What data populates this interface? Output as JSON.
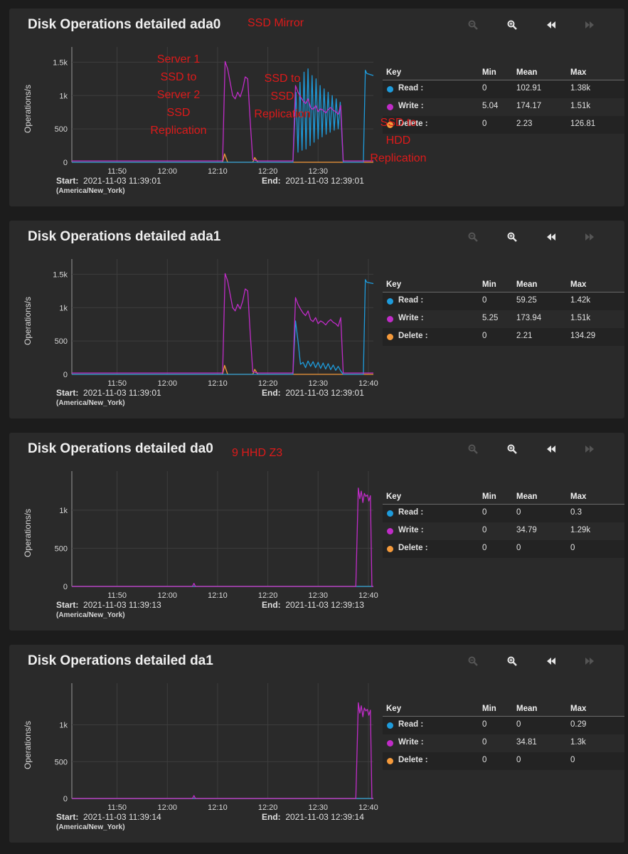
{
  "colors": {
    "read": "#1e9bdb",
    "write": "#c02cc8",
    "delete": "#f59a3b",
    "annotation": "#dd1a1a"
  },
  "icons": [
    "zoom-out-icon",
    "zoom-in-icon",
    "rewind-icon",
    "fast-forward-icon"
  ],
  "legend_headers": {
    "key": "Key",
    "min": "Min",
    "mean": "Mean",
    "max": "Max"
  },
  "footer_labels": {
    "start": "Start:",
    "end": "End:"
  },
  "timezone": "(America/New_York)",
  "annotations": {
    "ssd_mirror": "SSD Mirror",
    "server_replication": [
      "Server 1",
      "SSD to",
      "Server 2",
      "SSD",
      "Replication"
    ],
    "ssd_to_ssd": [
      "SSD to",
      "SSD",
      "Replication"
    ],
    "ssd_to_hdd": [
      "SSD to",
      "HDD",
      "Replication"
    ],
    "hhd_z3": "9 HHD Z3"
  },
  "panels": [
    {
      "title": "Disk Operations detailed ada0",
      "start": "2021-11-03 11:39:01",
      "end": "2021-11-03 12:39:01",
      "legend": [
        {
          "name": "Read :",
          "min": "0",
          "mean": "102.91",
          "max": "1.38k"
        },
        {
          "name": "Write :",
          "min": "5.04",
          "mean": "174.17",
          "max": "1.51k"
        },
        {
          "name": "Delete :",
          "min": "0",
          "mean": "2.23",
          "max": "126.81"
        }
      ]
    },
    {
      "title": "Disk Operations detailed ada1",
      "start": "2021-11-03 11:39:01",
      "end": "2021-11-03 12:39:01",
      "legend": [
        {
          "name": "Read :",
          "min": "0",
          "mean": "59.25",
          "max": "1.42k"
        },
        {
          "name": "Write :",
          "min": "5.25",
          "mean": "173.94",
          "max": "1.51k"
        },
        {
          "name": "Delete :",
          "min": "0",
          "mean": "2.21",
          "max": "134.29"
        }
      ]
    },
    {
      "title": "Disk Operations detailed da0",
      "start": "2021-11-03 11:39:13",
      "end": "2021-11-03 12:39:13",
      "legend": [
        {
          "name": "Read :",
          "min": "0",
          "mean": "0",
          "max": "0.3"
        },
        {
          "name": "Write :",
          "min": "0",
          "mean": "34.79",
          "max": "1.29k"
        },
        {
          "name": "Delete :",
          "min": "0",
          "mean": "0",
          "max": "0"
        }
      ]
    },
    {
      "title": "Disk Operations detailed da1",
      "start": "2021-11-03 11:39:14",
      "end": "2021-11-03 12:39:14",
      "legend": [
        {
          "name": "Read :",
          "min": "0",
          "mean": "0",
          "max": "0.29"
        },
        {
          "name": "Write :",
          "min": "0",
          "mean": "34.81",
          "max": "1.3k"
        },
        {
          "name": "Delete :",
          "min": "0",
          "mean": "0",
          "max": "0"
        }
      ]
    }
  ],
  "chart_data": [
    {
      "type": "line",
      "title": "Disk Operations detailed ada0",
      "ylabel": "Operations/s",
      "xlabel": "",
      "xlim": [
        41.0,
        101.0
      ],
      "ylim": [
        0,
        1600
      ],
      "x_ticks": [
        50,
        60,
        70,
        80,
        90
      ],
      "x_tick_labels": [
        "11:50",
        "12:00",
        "12:10",
        "12:20",
        "12:30"
      ],
      "y_ticks": [
        0,
        500,
        1000,
        1500
      ],
      "y_tick_labels": [
        "0",
        "500",
        "1k",
        "1.5k"
      ],
      "series": [
        {
          "name": "Read",
          "color": "#1e9bdb",
          "x": [
            41,
            85,
            85.6,
            86,
            86.4,
            86.8,
            87.2,
            87.6,
            88,
            88.4,
            88.8,
            89.2,
            89.6,
            90,
            90.4,
            90.8,
            91.2,
            91.6,
            92,
            92.4,
            92.8,
            93.2,
            93.6,
            94,
            94.4,
            95,
            99,
            99.4,
            99.7,
            101.0
          ],
          "values": [
            0,
            0,
            1050,
            150,
            1200,
            180,
            1350,
            200,
            1400,
            250,
            1300,
            300,
            1250,
            350,
            1150,
            380,
            1100,
            420,
            1050,
            450,
            1000,
            480,
            950,
            500,
            900,
            0,
            0,
            1380,
            1330,
            1300
          ]
        },
        {
          "name": "Write",
          "color": "#c02cc8",
          "x": [
            41,
            71,
            71.5,
            72,
            72.5,
            73,
            73.5,
            74,
            74.5,
            75,
            75.5,
            76,
            76.5,
            77,
            77.5,
            78,
            85,
            85.5,
            86,
            86.5,
            87,
            87.5,
            88,
            88.5,
            89,
            89.5,
            90,
            90.5,
            91,
            91.5,
            92,
            92.5,
            93,
            93.5,
            94,
            94.5,
            95,
            101.0
          ],
          "values": [
            20,
            20,
            1510,
            1400,
            1200,
            1000,
            950,
            1050,
            980,
            1100,
            1280,
            1250,
            600,
            40,
            30,
            20,
            20,
            1150,
            1050,
            980,
            920,
            880,
            950,
            820,
            790,
            850,
            760,
            800,
            780,
            740,
            790,
            820,
            780,
            760,
            720,
            850,
            20,
            20
          ]
        },
        {
          "name": "Delete",
          "color": "#f59a3b",
          "x": [
            41,
            71,
            71.4,
            72,
            77,
            77.4,
            78,
            101.0
          ],
          "values": [
            0,
            0,
            126,
            0,
            0,
            70,
            0,
            0
          ]
        }
      ]
    },
    {
      "type": "line",
      "title": "Disk Operations detailed ada1",
      "ylabel": "Operations/s",
      "xlabel": "",
      "xlim": [
        41.0,
        101.0
      ],
      "ylim": [
        0,
        1600
      ],
      "x_ticks": [
        50,
        60,
        70,
        80,
        90,
        100
      ],
      "x_tick_labels": [
        "11:50",
        "12:00",
        "12:10",
        "12:20",
        "12:30",
        "12:40"
      ],
      "y_ticks": [
        0,
        500,
        1000,
        1500
      ],
      "y_tick_labels": [
        "0",
        "500",
        "1k",
        "1.5k"
      ],
      "series": [
        {
          "name": "Read",
          "color": "#1e9bdb",
          "x": [
            41,
            85,
            85.5,
            86,
            86.5,
            87,
            87.5,
            88,
            88.5,
            89,
            89.5,
            90,
            90.5,
            91,
            91.5,
            92,
            92.5,
            93,
            93.5,
            94,
            94.5,
            95,
            99,
            99.4,
            99.7,
            101.0
          ],
          "values": [
            0,
            0,
            800,
            500,
            150,
            180,
            100,
            200,
            120,
            190,
            100,
            180,
            90,
            170,
            80,
            160,
            70,
            140,
            60,
            120,
            50,
            0,
            0,
            1420,
            1380,
            1360
          ]
        },
        {
          "name": "Write",
          "color": "#c02cc8",
          "x": [
            41,
            71,
            71.5,
            72,
            72.5,
            73,
            73.5,
            74,
            74.5,
            75,
            75.5,
            76,
            76.5,
            77,
            77.5,
            78,
            85,
            85.5,
            86,
            86.5,
            87,
            87.5,
            88,
            88.5,
            89,
            89.5,
            90,
            90.5,
            91,
            91.5,
            92,
            92.5,
            93,
            93.5,
            94,
            94.5,
            95,
            101.0
          ],
          "values": [
            20,
            20,
            1510,
            1400,
            1200,
            1000,
            950,
            1050,
            980,
            1100,
            1280,
            1250,
            600,
            40,
            30,
            20,
            20,
            1150,
            1050,
            980,
            920,
            880,
            950,
            820,
            790,
            850,
            760,
            800,
            780,
            740,
            790,
            820,
            780,
            760,
            720,
            850,
            20,
            20
          ]
        },
        {
          "name": "Delete",
          "color": "#f59a3b",
          "x": [
            41,
            71,
            71.4,
            72,
            77,
            77.4,
            78,
            101.0
          ],
          "values": [
            0,
            0,
            134,
            0,
            0,
            75,
            0,
            0
          ]
        }
      ]
    },
    {
      "type": "line",
      "title": "Disk Operations detailed da0",
      "ylabel": "Operations/s",
      "xlabel": "",
      "xlim": [
        41.0,
        101.0
      ],
      "ylim": [
        0,
        1400
      ],
      "x_ticks": [
        50,
        60,
        70,
        80,
        90,
        100
      ],
      "x_tick_labels": [
        "11:50",
        "12:00",
        "12:10",
        "12:20",
        "12:30",
        "12:40"
      ],
      "y_ticks": [
        0,
        500,
        1000
      ],
      "y_tick_labels": [
        "0",
        "500",
        "1k"
      ],
      "series": [
        {
          "name": "Read",
          "color": "#1e9bdb",
          "x": [
            41,
            101.0
          ],
          "values": [
            0,
            0
          ]
        },
        {
          "name": "Write",
          "color": "#c02cc8",
          "x": [
            41,
            65,
            65.3,
            65.6,
            97.5,
            98,
            98.3,
            98.6,
            98.9,
            99.2,
            99.5,
            99.8,
            100.1,
            100.4,
            100.7,
            101.0
          ],
          "values": [
            0,
            0,
            40,
            0,
            0,
            1290,
            1150,
            1250,
            1100,
            1220,
            1180,
            1200,
            1120,
            1190,
            0,
            0
          ]
        },
        {
          "name": "Delete",
          "color": "#f59a3b",
          "x": [
            41,
            101.0
          ],
          "values": [
            0,
            0
          ]
        }
      ]
    },
    {
      "type": "line",
      "title": "Disk Operations detailed da1",
      "ylabel": "Operations/s",
      "xlabel": "",
      "xlim": [
        41.0,
        101.0
      ],
      "ylim": [
        0,
        1450
      ],
      "x_ticks": [
        50,
        60,
        70,
        80,
        90,
        100
      ],
      "x_tick_labels": [
        "11:50",
        "12:00",
        "12:10",
        "12:20",
        "12:30",
        "12:40"
      ],
      "y_ticks": [
        0,
        500,
        1000
      ],
      "y_tick_labels": [
        "0",
        "500",
        "1k"
      ],
      "series": [
        {
          "name": "Read",
          "color": "#1e9bdb",
          "x": [
            41,
            101.0
          ],
          "values": [
            0,
            0
          ]
        },
        {
          "name": "Write",
          "color": "#c02cc8",
          "x": [
            41,
            65,
            65.3,
            65.6,
            97.5,
            98,
            98.3,
            98.6,
            98.9,
            99.2,
            99.5,
            99.8,
            100.1,
            100.4,
            100.7,
            101.0
          ],
          "values": [
            0,
            0,
            40,
            0,
            0,
            1300,
            1160,
            1260,
            1110,
            1230,
            1190,
            1210,
            1130,
            1200,
            0,
            0
          ]
        },
        {
          "name": "Delete",
          "color": "#f59a3b",
          "x": [
            41,
            101.0
          ],
          "values": [
            0,
            0
          ]
        }
      ]
    }
  ]
}
